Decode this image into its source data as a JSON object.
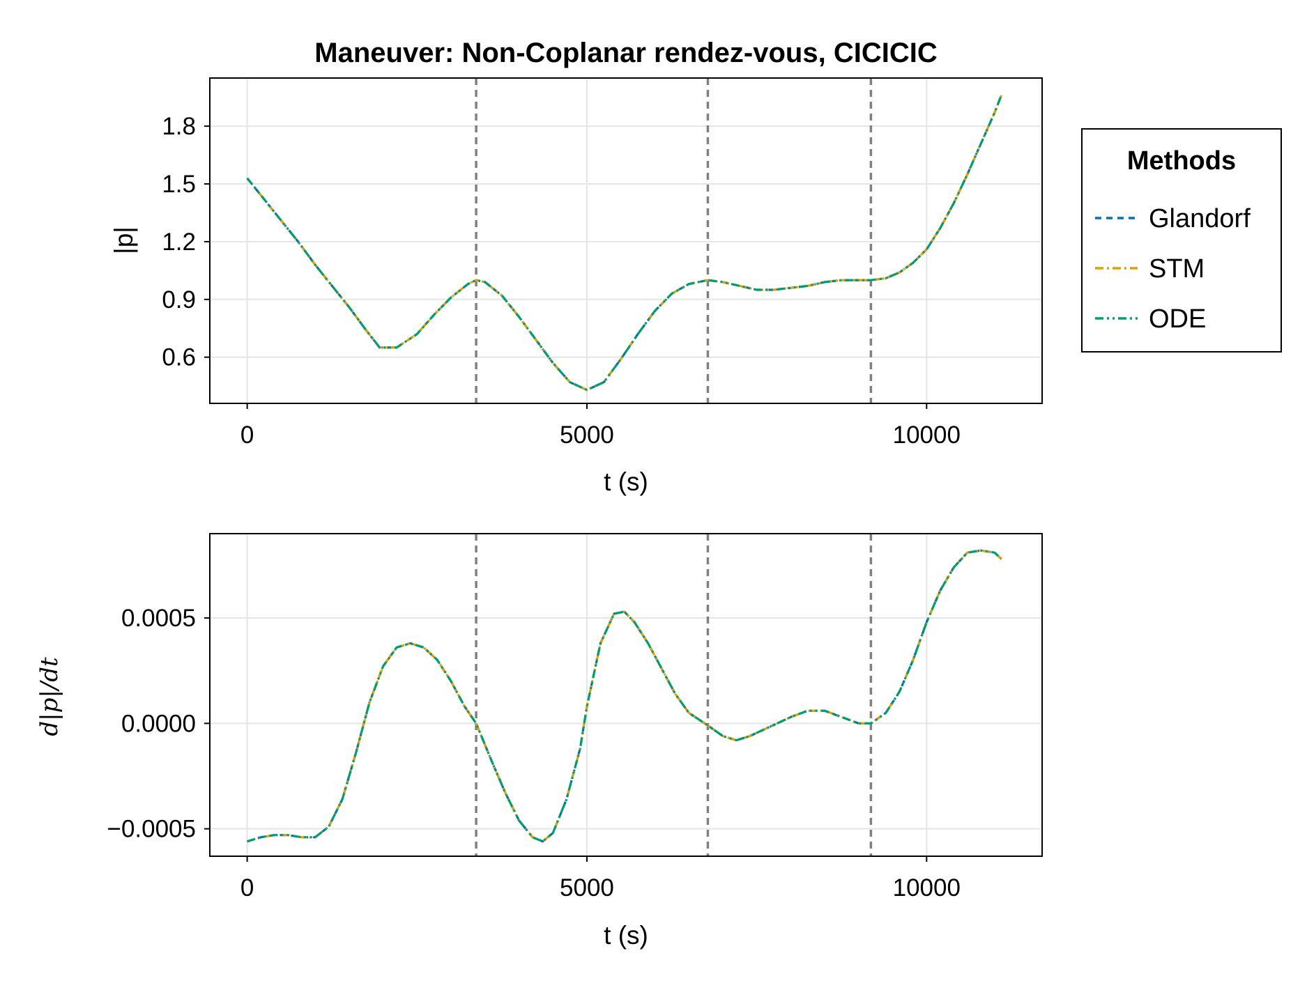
{
  "chart_data": [
    {
      "type": "line",
      "title": "Maneuver: Non-Coplanar rendez-vous, CICICIC",
      "xlabel": "t (s)",
      "ylabel": "|p|",
      "xlim": [
        -550,
        11700
      ],
      "ylim": [
        0.36,
        2.05
      ],
      "xticks": [
        0,
        5000,
        10000
      ],
      "yticks": [
        0.6,
        0.9,
        1.2,
        1.5,
        1.8
      ],
      "xtick_labels": [
        "0",
        "5000",
        "10000"
      ],
      "ytick_labels": [
        "0.6",
        "0.9",
        "1.2",
        "1.5",
        "1.8"
      ],
      "grid": true,
      "vlines": [
        3370,
        6780,
        9180
      ],
      "x": [
        0,
        250,
        500,
        750,
        1000,
        1250,
        1500,
        1750,
        1950,
        2200,
        2500,
        2750,
        3000,
        3250,
        3370,
        3500,
        3750,
        4000,
        4250,
        4500,
        4750,
        5000,
        5250,
        5500,
        5750,
        6000,
        6250,
        6500,
        6780,
        7000,
        7250,
        7500,
        7750,
        8000,
        8250,
        8500,
        8750,
        9000,
        9180,
        9400,
        9600,
        9800,
        10000,
        10200,
        10400,
        10600,
        10800,
        11000,
        11100
      ],
      "series": [
        {
          "name": "Glandorf",
          "values": [
            1.53,
            1.42,
            1.31,
            1.2,
            1.08,
            0.97,
            0.86,
            0.74,
            0.65,
            0.65,
            0.72,
            0.82,
            0.91,
            0.98,
            1.0,
            0.99,
            0.92,
            0.81,
            0.69,
            0.57,
            0.47,
            0.43,
            0.47,
            0.59,
            0.72,
            0.84,
            0.93,
            0.98,
            1.0,
            0.99,
            0.97,
            0.95,
            0.95,
            0.96,
            0.97,
            0.99,
            1.0,
            1.0,
            1.0,
            1.01,
            1.04,
            1.09,
            1.16,
            1.27,
            1.4,
            1.55,
            1.71,
            1.87,
            1.96
          ]
        },
        {
          "name": "STM",
          "values": [
            1.53,
            1.42,
            1.31,
            1.2,
            1.08,
            0.97,
            0.86,
            0.74,
            0.65,
            0.65,
            0.72,
            0.82,
            0.91,
            0.98,
            1.0,
            0.99,
            0.92,
            0.81,
            0.69,
            0.57,
            0.47,
            0.43,
            0.47,
            0.59,
            0.72,
            0.84,
            0.93,
            0.98,
            1.0,
            0.99,
            0.97,
            0.95,
            0.95,
            0.96,
            0.97,
            0.99,
            1.0,
            1.0,
            1.0,
            1.01,
            1.04,
            1.09,
            1.16,
            1.27,
            1.4,
            1.55,
            1.71,
            1.87,
            1.96
          ]
        },
        {
          "name": "ODE",
          "values": [
            1.53,
            1.42,
            1.31,
            1.2,
            1.08,
            0.97,
            0.86,
            0.74,
            0.65,
            0.65,
            0.72,
            0.82,
            0.91,
            0.98,
            1.0,
            0.99,
            0.92,
            0.81,
            0.69,
            0.57,
            0.47,
            0.43,
            0.47,
            0.59,
            0.72,
            0.84,
            0.93,
            0.98,
            1.0,
            0.99,
            0.97,
            0.95,
            0.95,
            0.96,
            0.97,
            0.99,
            1.0,
            1.0,
            1.0,
            1.01,
            1.04,
            1.09,
            1.16,
            1.27,
            1.4,
            1.55,
            1.71,
            1.87,
            1.96
          ]
        }
      ],
      "legend": {
        "title": "Methods",
        "position": "right"
      }
    },
    {
      "type": "line",
      "xlabel": "t (s)",
      "ylabel": "d|p|/dt",
      "xlim": [
        -550,
        11700
      ],
      "ylim": [
        -0.00063,
        0.0009
      ],
      "xticks": [
        0,
        5000,
        10000
      ],
      "yticks": [
        -0.0005,
        0.0,
        0.0005
      ],
      "xtick_labels": [
        "0",
        "5000",
        "10000"
      ],
      "ytick_labels": [
        "−0.0005",
        "0.0000",
        "0.0005"
      ],
      "grid": true,
      "vlines": [
        3370,
        6780,
        9180
      ],
      "x": [
        0,
        200,
        400,
        600,
        800,
        1000,
        1200,
        1400,
        1600,
        1800,
        2000,
        2200,
        2400,
        2600,
        2800,
        3000,
        3200,
        3370,
        3600,
        3800,
        4000,
        4200,
        4350,
        4500,
        4700,
        4900,
        5000,
        5200,
        5400,
        5550,
        5700,
        5900,
        6100,
        6300,
        6500,
        6780,
        7000,
        7200,
        7400,
        7600,
        7800,
        8000,
        8250,
        8500,
        8750,
        9000,
        9180,
        9400,
        9600,
        9800,
        10000,
        10200,
        10400,
        10600,
        10800,
        11000,
        11100
      ],
      "series": [
        {
          "name": "Glandorf",
          "values": [
            -0.00056,
            -0.00054,
            -0.00053,
            -0.00053,
            -0.00054,
            -0.00054,
            -0.00049,
            -0.00036,
            -0.00014,
            0.0001,
            0.00027,
            0.00036,
            0.00038,
            0.00036,
            0.0003,
            0.0002,
            8e-05,
            0.0,
            -0.00018,
            -0.00033,
            -0.00046,
            -0.00054,
            -0.00056,
            -0.00052,
            -0.00036,
            -0.00012,
            8e-05,
            0.00038,
            0.00052,
            0.00053,
            0.00048,
            0.00038,
            0.00026,
            0.00014,
            5e-05,
            -1e-05,
            -6e-05,
            -8e-05,
            -6e-05,
            -3e-05,
            0.0,
            3e-05,
            6e-05,
            6e-05,
            3e-05,
            0.0,
            0.0,
            5e-05,
            0.00015,
            0.0003,
            0.00048,
            0.00063,
            0.00074,
            0.00081,
            0.00082,
            0.00081,
            0.00078
          ]
        },
        {
          "name": "STM",
          "values": [
            -0.00056,
            -0.00054,
            -0.00053,
            -0.00053,
            -0.00054,
            -0.00054,
            -0.00049,
            -0.00036,
            -0.00014,
            0.0001,
            0.00027,
            0.00036,
            0.00038,
            0.00036,
            0.0003,
            0.0002,
            8e-05,
            0.0,
            -0.00018,
            -0.00033,
            -0.00046,
            -0.00054,
            -0.00056,
            -0.00052,
            -0.00036,
            -0.00012,
            8e-05,
            0.00038,
            0.00052,
            0.00053,
            0.00048,
            0.00038,
            0.00026,
            0.00014,
            5e-05,
            -1e-05,
            -6e-05,
            -8e-05,
            -6e-05,
            -3e-05,
            0.0,
            3e-05,
            6e-05,
            6e-05,
            3e-05,
            0.0,
            0.0,
            5e-05,
            0.00015,
            0.0003,
            0.00048,
            0.00063,
            0.00074,
            0.00081,
            0.00082,
            0.00081,
            0.00078
          ]
        },
        {
          "name": "ODE",
          "values": [
            -0.00056,
            -0.00054,
            -0.00053,
            -0.00053,
            -0.00054,
            -0.00054,
            -0.00049,
            -0.00036,
            -0.00014,
            0.0001,
            0.00027,
            0.00036,
            0.00038,
            0.00036,
            0.0003,
            0.0002,
            8e-05,
            0.0,
            -0.00018,
            -0.00033,
            -0.00046,
            -0.00054,
            -0.00056,
            -0.00052,
            -0.00036,
            -0.00012,
            8e-05,
            0.00038,
            0.00052,
            0.00053,
            0.00048,
            0.00038,
            0.00026,
            0.00014,
            5e-05,
            -1e-05,
            -6e-05,
            -8e-05,
            -6e-05,
            -3e-05,
            0.0,
            3e-05,
            6e-05,
            6e-05,
            3e-05,
            0.0,
            0.0,
            5e-05,
            0.00015,
            0.0003,
            0.00048,
            0.00063,
            0.00074,
            0.00081,
            0.00082,
            0.00081,
            0.00078
          ]
        }
      ]
    }
  ],
  "colors": {
    "Glandorf": "#0072b2",
    "STM": "#e69f00",
    "ODE": "#009e73",
    "vline": "#808080",
    "grid": "#e5e5e5",
    "axis": "#000000"
  },
  "legend": {
    "title": "Methods",
    "items": [
      "Glandorf",
      "STM",
      "ODE"
    ]
  }
}
